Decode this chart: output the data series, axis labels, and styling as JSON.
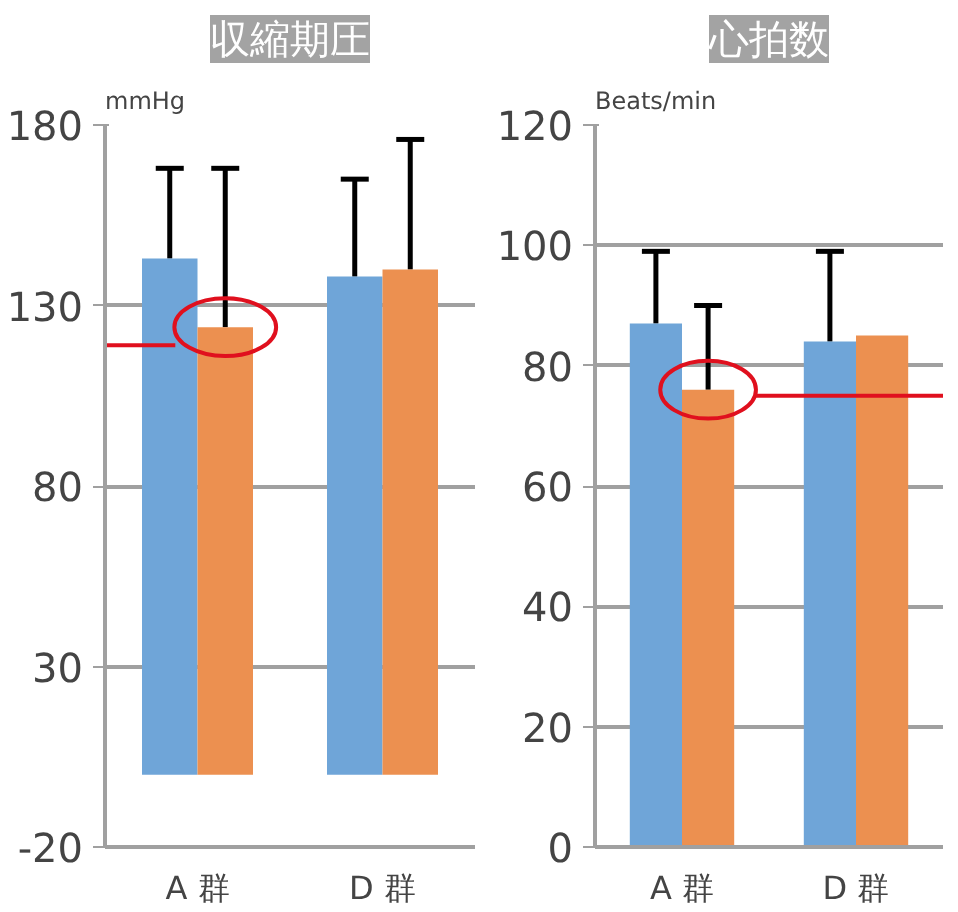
{
  "chart_data": [
    {
      "type": "bar",
      "title": "収縮期圧",
      "ylabel": "mmHg",
      "categories": [
        "A 群",
        "D 群"
      ],
      "ylim": [
        -20,
        180
      ],
      "yticks": [
        -20,
        30,
        80,
        130,
        180
      ],
      "grid": "y",
      "ref_lines": [
        {
          "axis": "y",
          "value": 119,
          "color": "#e0101e"
        }
      ],
      "series": [
        {
          "color": "#6fa5d8",
          "values": [
            143,
            138
          ],
          "errors": [
            [
              143,
              168
            ],
            [
              138,
              165
            ]
          ]
        },
        {
          "color": "#ec9050",
          "values": [
            124,
            140
          ],
          "errors": [
            [
              124,
              168
            ],
            [
              140,
              176
            ]
          ]
        }
      ]
    },
    {
      "type": "bar",
      "title": "心拍数",
      "ylabel": "Beats/min",
      "categories": [
        "A 群",
        "D 群"
      ],
      "ylim": [
        0,
        120
      ],
      "yticks": [
        0,
        20,
        40,
        60,
        80,
        100,
        120
      ],
      "grid": "y",
      "ref_lines": [
        {
          "axis": "y",
          "value": 75,
          "color": "#e0101e"
        }
      ],
      "series": [
        {
          "color": "#6fa5d8",
          "values": [
            87,
            84
          ],
          "errors": [
            [
              87,
              99
            ],
            [
              84,
              99
            ]
          ]
        },
        {
          "color": "#ec9050",
          "values": [
            76,
            85
          ],
          "errors": [
            [
              76,
              90
            ],
            null
          ]
        }
      ]
    }
  ]
}
